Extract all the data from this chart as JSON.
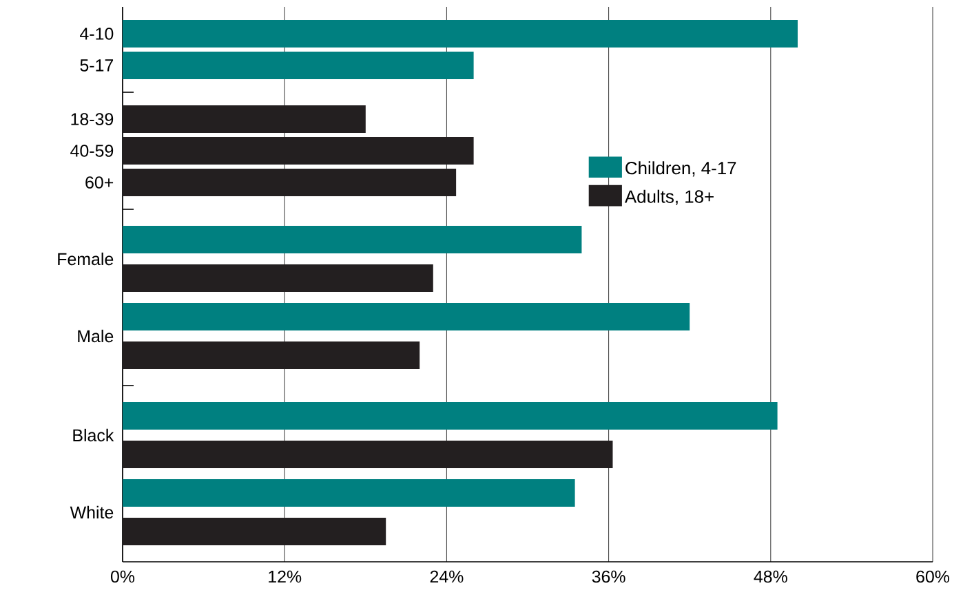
{
  "chart_data": [
    {
      "type": "bar",
      "orientation": "horizontal",
      "categories": [
        "4-10",
        "5-17"
      ],
      "series": [
        {
          "color": "#008080",
          "values": [
            50,
            26
          ]
        }
      ],
      "xlim": [
        0,
        60
      ],
      "xticks": [
        0,
        12,
        24,
        36,
        48,
        60
      ],
      "tick_labels": "y",
      "grid": "x"
    },
    {
      "type": "bar",
      "orientation": "horizontal",
      "categories": [
        "18-39",
        "40-59",
        "60+"
      ],
      "series": [
        {
          "color": "#231f20",
          "values": [
            18,
            26,
            24.7
          ]
        }
      ],
      "xlim": [
        0,
        60
      ],
      "xticks": [
        0,
        12,
        24,
        36,
        48,
        60
      ],
      "tick_labels": "y",
      "grid": "x"
    },
    {
      "type": "bar",
      "orientation": "horizontal",
      "categories": [
        "Female",
        "Male"
      ],
      "series": [
        {
          "name": "Children, 4-17",
          "color": "#008080",
          "values": [
            34,
            42
          ]
        },
        {
          "name": "Adults, 18+",
          "color": "#231f20",
          "values": [
            23,
            22
          ]
        }
      ],
      "xlim": [
        0,
        60
      ],
      "xticks": [
        0,
        12,
        24,
        36,
        48,
        60
      ],
      "tick_labels": "y",
      "grid": "x",
      "legend": "right"
    },
    {
      "type": "bar",
      "orientation": "horizontal",
      "categories": [
        "Black",
        "White"
      ],
      "series": [
        {
          "color": "#008080",
          "values": [
            48.5,
            33.5
          ]
        },
        {
          "color": "#231f20",
          "values": [
            36.3,
            19.5
          ]
        }
      ],
      "xlim": [
        0,
        60
      ],
      "xticks": [
        {
          "value": 0,
          "label": "0%"
        },
        {
          "value": 12,
          "label": "12%"
        },
        {
          "value": 24,
          "label": "24%"
        },
        {
          "value": 36,
          "label": "36%"
        },
        {
          "value": 48,
          "label": "48%"
        },
        {
          "value": 60,
          "label": "60%"
        }
      ],
      "grid": "x"
    }
  ]
}
